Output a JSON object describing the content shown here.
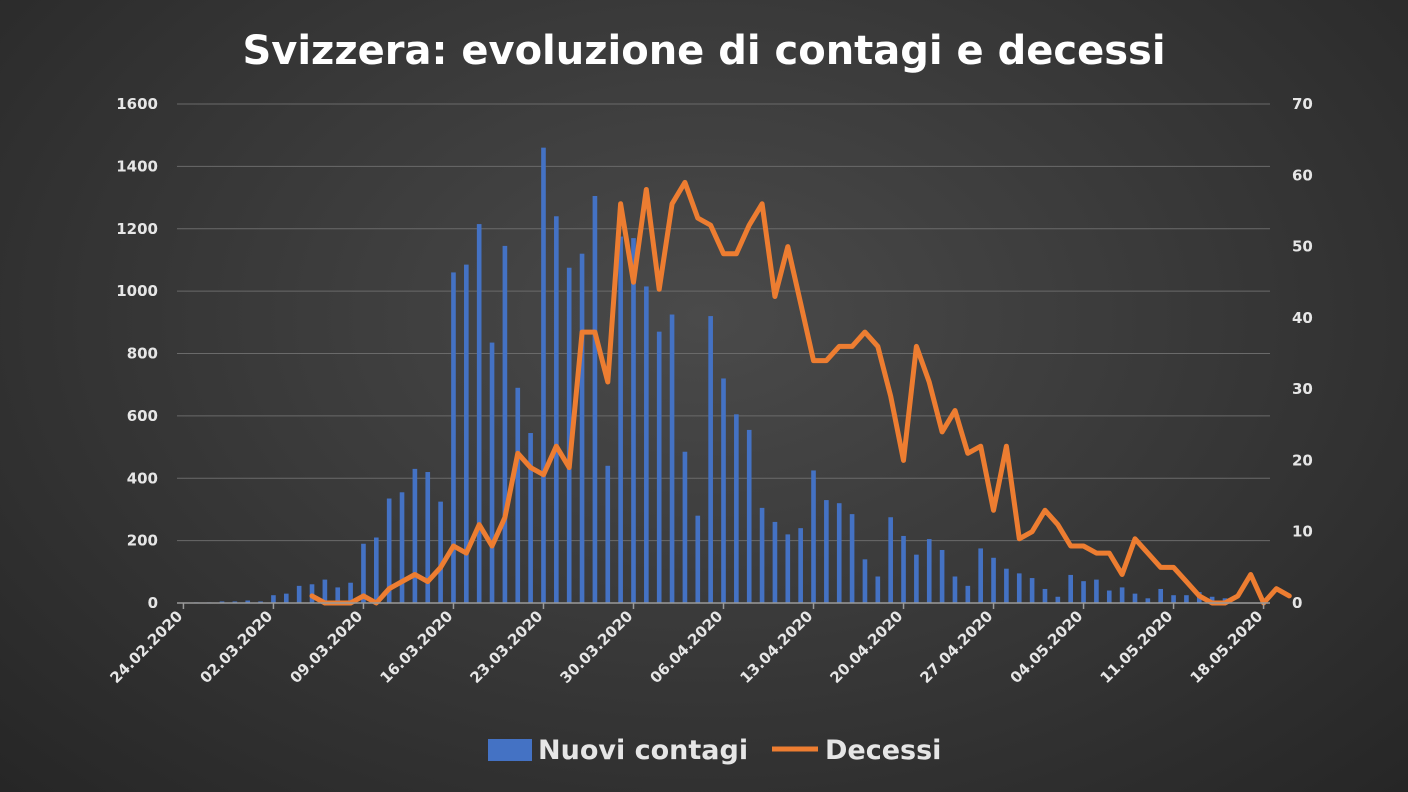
{
  "chart_data": {
    "type": "bar",
    "title": "Svizzera: evoluzione di contagi e decessi",
    "x_start": "24.02.2020",
    "x_end": "18.05.2020",
    "x_tick_labels": [
      "24.02.2020",
      "02.03.2020",
      "09.03.2020",
      "16.03.2020",
      "23.03.2020",
      "30.03.2020",
      "06.04.2020",
      "13.04.2020",
      "20.04.2020",
      "27.04.2020",
      "04.05.2020",
      "11.05.2020",
      "18.05.2020"
    ],
    "y_left": {
      "min": 0,
      "max": 1600,
      "ticks": [
        0,
        200,
        400,
        600,
        800,
        1000,
        1200,
        1400,
        1600
      ]
    },
    "y_right": {
      "min": 0,
      "max": 70,
      "ticks": [
        0,
        10,
        20,
        30,
        40,
        50,
        60,
        70
      ]
    },
    "grid": true,
    "legend_position": "bottom",
    "series": [
      {
        "name": "Nuovi contagi",
        "type": "bar",
        "axis": "left",
        "color": "#4472c4",
        "values": [
          1,
          2,
          2,
          5,
          5,
          8,
          5,
          25,
          30,
          55,
          60,
          75,
          50,
          65,
          190,
          210,
          335,
          355,
          430,
          420,
          325,
          1060,
          1085,
          1215,
          835,
          1145,
          690,
          545,
          1460,
          1240,
          1075,
          1120,
          1305,
          440,
          1175,
          1170,
          1015,
          870,
          925,
          485,
          280,
          920,
          720,
          605,
          555,
          305,
          260,
          220,
          240,
          425,
          330,
          320,
          285,
          140,
          85,
          275,
          215,
          155,
          205,
          170,
          85,
          55,
          175,
          145,
          110,
          95,
          80,
          45,
          20,
          90,
          70,
          75,
          40,
          50,
          30,
          15,
          45,
          25,
          25,
          35,
          20,
          15
        ]
      },
      {
        "name": "Decessi",
        "type": "line",
        "axis": "right",
        "color": "#ed7d31",
        "start_index": 10,
        "values": [
          1,
          0,
          0,
          0,
          1,
          0,
          2,
          3,
          4,
          3,
          5,
          8,
          7,
          11,
          8,
          12,
          21,
          19,
          18,
          22,
          19,
          38,
          38,
          31,
          56,
          45,
          58,
          44,
          56,
          59,
          54,
          53,
          49,
          49,
          53,
          56,
          43,
          50,
          42,
          34,
          34,
          36,
          36,
          38,
          36,
          29,
          20,
          36,
          31,
          24,
          27,
          21,
          22,
          13,
          22,
          9,
          10,
          13,
          11,
          8,
          8,
          7,
          7,
          4,
          9,
          7,
          5,
          5,
          3,
          1,
          0,
          0,
          1,
          4,
          0,
          2,
          1
        ]
      }
    ]
  }
}
